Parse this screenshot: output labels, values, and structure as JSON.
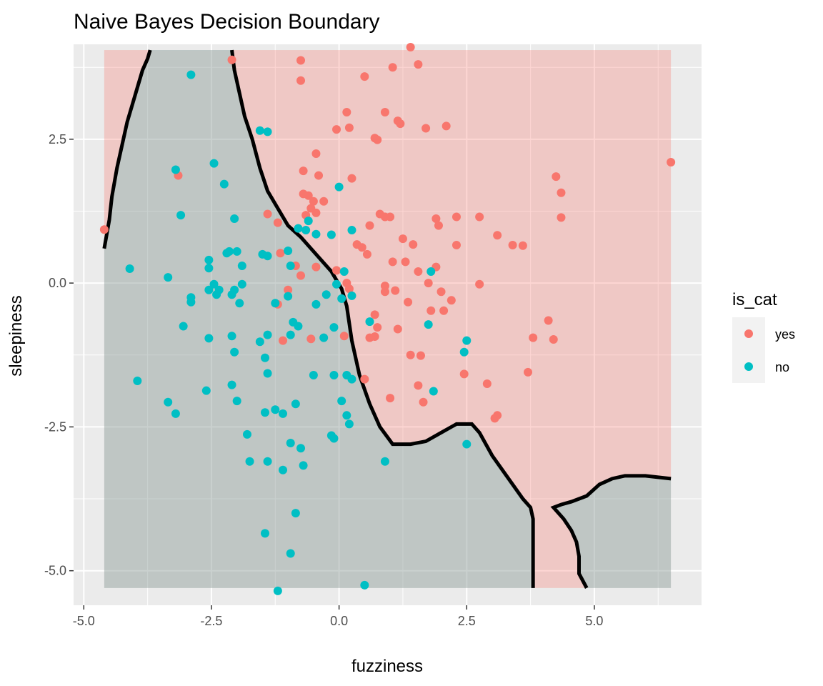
{
  "chart_data": {
    "type": "scatter",
    "title": "Naive Bayes Decision Boundary",
    "xlabel": "fuzziness",
    "ylabel": "sleepiness",
    "xlim": [
      -5.2,
      7.1
    ],
    "ylim": [
      -5.6,
      4.15
    ],
    "x_ticks": [
      -5.0,
      -2.5,
      0.0,
      2.5,
      5.0
    ],
    "x_tick_labels": [
      "-5.0",
      "-2.5",
      "0.0",
      "2.5",
      "5.0"
    ],
    "y_ticks": [
      -5.0,
      -2.5,
      0.0,
      2.5
    ],
    "y_tick_labels": [
      "-5.0",
      "-2.5",
      "0.0",
      "2.5"
    ],
    "grid": true,
    "region_extent": {
      "x": [
        -4.6,
        6.5
      ],
      "y": [
        -5.3,
        4.05
      ]
    },
    "region_colors": {
      "yes": "#F8766D",
      "no": "#00BFC4"
    },
    "no_region_polygons": [
      [
        [
          -4.6,
          4.05
        ],
        [
          -3.7,
          4.05
        ],
        [
          -3.75,
          3.9
        ],
        [
          -3.85,
          3.7
        ],
        [
          -3.95,
          3.4
        ],
        [
          -4.05,
          3.1
        ],
        [
          -4.15,
          2.8
        ],
        [
          -4.25,
          2.4
        ],
        [
          -4.35,
          2.0
        ],
        [
          -4.45,
          1.5
        ],
        [
          -4.5,
          1.1
        ],
        [
          -4.6,
          0.6
        ],
        [
          -4.6,
          -5.3
        ],
        [
          3.8,
          -5.3
        ],
        [
          3.8,
          -4.1
        ],
        [
          3.75,
          -3.9
        ],
        [
          3.6,
          -3.75
        ],
        [
          3.4,
          -3.5
        ],
        [
          3.2,
          -3.25
        ],
        [
          3.0,
          -3.0
        ],
        [
          2.75,
          -2.6
        ],
        [
          2.6,
          -2.45
        ],
        [
          2.3,
          -2.45
        ],
        [
          2.0,
          -2.6
        ],
        [
          1.7,
          -2.75
        ],
        [
          1.4,
          -2.8
        ],
        [
          1.05,
          -2.8
        ],
        [
          0.8,
          -2.5
        ],
        [
          0.6,
          -2.1
        ],
        [
          0.4,
          -1.6
        ],
        [
          0.25,
          -1.0
        ],
        [
          0.15,
          -0.4
        ],
        [
          0.05,
          -0.1
        ],
        [
          -0.15,
          0.2
        ],
        [
          -0.45,
          0.5
        ],
        [
          -0.75,
          0.8
        ],
        [
          -1.0,
          1.0
        ],
        [
          -1.2,
          1.3
        ],
        [
          -1.4,
          1.6
        ],
        [
          -1.55,
          2.0
        ],
        [
          -1.7,
          2.5
        ],
        [
          -1.85,
          2.9
        ],
        [
          -1.95,
          3.3
        ],
        [
          -2.05,
          3.7
        ],
        [
          -2.1,
          4.05
        ]
      ],
      [
        [
          4.2,
          -3.9
        ],
        [
          4.35,
          -3.85
        ],
        [
          4.55,
          -3.8
        ],
        [
          4.85,
          -3.7
        ],
        [
          5.1,
          -3.5
        ],
        [
          5.35,
          -3.4
        ],
        [
          5.6,
          -3.35
        ],
        [
          6.0,
          -3.35
        ],
        [
          6.5,
          -3.4
        ],
        [
          6.5,
          -5.3
        ],
        [
          4.85,
          -5.3
        ],
        [
          4.7,
          -5.05
        ],
        [
          4.7,
          -4.75
        ],
        [
          4.65,
          -4.5
        ],
        [
          4.55,
          -4.3
        ],
        [
          4.4,
          -4.1
        ]
      ]
    ],
    "boundary_paths": [
      [
        [
          -4.6,
          0.6
        ],
        [
          -4.5,
          1.1
        ],
        [
          -4.45,
          1.5
        ],
        [
          -4.35,
          2.0
        ],
        [
          -4.25,
          2.4
        ],
        [
          -4.15,
          2.8
        ],
        [
          -4.05,
          3.1
        ],
        [
          -3.95,
          3.4
        ],
        [
          -3.85,
          3.7
        ],
        [
          -3.75,
          3.9
        ],
        [
          -3.7,
          4.05
        ]
      ],
      [
        [
          -2.1,
          4.05
        ],
        [
          -2.05,
          3.7
        ],
        [
          -1.95,
          3.3
        ],
        [
          -1.85,
          2.9
        ],
        [
          -1.7,
          2.5
        ],
        [
          -1.55,
          2.0
        ],
        [
          -1.4,
          1.6
        ],
        [
          -1.2,
          1.3
        ],
        [
          -1.0,
          1.0
        ],
        [
          -0.75,
          0.8
        ],
        [
          -0.45,
          0.5
        ],
        [
          -0.15,
          0.2
        ],
        [
          0.05,
          -0.1
        ],
        [
          0.15,
          -0.4
        ],
        [
          0.25,
          -1.0
        ],
        [
          0.4,
          -1.6
        ],
        [
          0.6,
          -2.1
        ],
        [
          0.8,
          -2.5
        ],
        [
          1.05,
          -2.8
        ],
        [
          1.4,
          -2.8
        ],
        [
          1.7,
          -2.75
        ],
        [
          2.0,
          -2.6
        ],
        [
          2.3,
          -2.45
        ],
        [
          2.6,
          -2.45
        ],
        [
          2.75,
          -2.6
        ],
        [
          3.0,
          -3.0
        ],
        [
          3.2,
          -3.25
        ],
        [
          3.4,
          -3.5
        ],
        [
          3.6,
          -3.75
        ],
        [
          3.75,
          -3.9
        ],
        [
          3.8,
          -4.1
        ],
        [
          3.8,
          -5.3
        ]
      ],
      [
        [
          4.85,
          -5.3
        ],
        [
          4.7,
          -5.05
        ],
        [
          4.7,
          -4.75
        ],
        [
          4.65,
          -4.5
        ],
        [
          4.55,
          -4.3
        ],
        [
          4.4,
          -4.1
        ],
        [
          4.2,
          -3.9
        ],
        [
          4.35,
          -3.85
        ],
        [
          4.55,
          -3.8
        ],
        [
          4.85,
          -3.7
        ],
        [
          5.1,
          -3.5
        ],
        [
          5.35,
          -3.4
        ],
        [
          5.6,
          -3.35
        ],
        [
          6.0,
          -3.35
        ],
        [
          6.5,
          -3.4
        ]
      ]
    ],
    "legend": {
      "title": "is_cat",
      "placement": "right",
      "entries": [
        {
          "label": "yes",
          "color": "#F8766D"
        },
        {
          "label": "no",
          "color": "#00BFC4"
        }
      ]
    },
    "series": [
      {
        "name": "yes",
        "color": "#F8766D",
        "points": [
          [
            -4.6,
            0.93
          ],
          [
            -2.1,
            3.88
          ],
          [
            -3.15,
            1.87
          ],
          [
            -0.75,
            3.87
          ],
          [
            -0.75,
            3.52
          ],
          [
            1.4,
            4.1
          ],
          [
            1.55,
            3.8
          ],
          [
            0.5,
            3.59
          ],
          [
            1.05,
            3.75
          ],
          [
            0.15,
            2.97
          ],
          [
            0.9,
            2.97
          ],
          [
            1.15,
            2.82
          ],
          [
            1.2,
            2.77
          ],
          [
            -0.05,
            2.67
          ],
          [
            0.2,
            2.7
          ],
          [
            1.7,
            2.69
          ],
          [
            2.1,
            2.73
          ],
          [
            0.7,
            2.52
          ],
          [
            0.75,
            2.49
          ],
          [
            -0.45,
            2.25
          ],
          [
            -0.7,
            1.95
          ],
          [
            -0.4,
            1.87
          ],
          [
            0.25,
            1.82
          ],
          [
            4.25,
            1.85
          ],
          [
            4.35,
            1.57
          ],
          [
            6.5,
            2.1
          ],
          [
            -0.7,
            1.55
          ],
          [
            -0.6,
            1.52
          ],
          [
            -0.5,
            1.42
          ],
          [
            -0.3,
            1.42
          ],
          [
            -0.55,
            1.3
          ],
          [
            -0.45,
            1.22
          ],
          [
            -0.65,
            1.18
          ],
          [
            -1.4,
            1.2
          ],
          [
            -1.2,
            1.05
          ],
          [
            0.8,
            1.2
          ],
          [
            0.9,
            1.15
          ],
          [
            0.6,
            1.0
          ],
          [
            1.0,
            1.15
          ],
          [
            1.9,
            1.12
          ],
          [
            2.3,
            1.15
          ],
          [
            2.75,
            1.15
          ],
          [
            4.35,
            1.14
          ],
          [
            1.95,
            1.0
          ],
          [
            1.25,
            0.77
          ],
          [
            1.45,
            0.67
          ],
          [
            3.1,
            0.83
          ],
          [
            3.4,
            0.66
          ],
          [
            3.6,
            0.65
          ],
          [
            0.35,
            0.67
          ],
          [
            0.45,
            0.62
          ],
          [
            0.55,
            0.5
          ],
          [
            2.3,
            0.66
          ],
          [
            1.05,
            0.37
          ],
          [
            1.3,
            0.37
          ],
          [
            1.9,
            0.28
          ],
          [
            -1.15,
            0.52
          ],
          [
            -0.85,
            0.3
          ],
          [
            -0.75,
            0.13
          ],
          [
            -0.45,
            0.28
          ],
          [
            -0.05,
            0.22
          ],
          [
            0.15,
            0.0
          ],
          [
            0.2,
            -0.1
          ],
          [
            0.9,
            -0.05
          ],
          [
            0.9,
            -0.15
          ],
          [
            1.1,
            -0.13
          ],
          [
            1.55,
            0.2
          ],
          [
            1.75,
            0.0
          ],
          [
            2.0,
            -0.15
          ],
          [
            2.2,
            -0.3
          ],
          [
            2.75,
            -0.02
          ],
          [
            1.35,
            -0.33
          ],
          [
            1.8,
            -0.48
          ],
          [
            2.05,
            -0.48
          ],
          [
            0.7,
            -0.55
          ],
          [
            -1.0,
            -0.12
          ],
          [
            -1.2,
            -0.37
          ],
          [
            0.1,
            -0.92
          ],
          [
            0.6,
            -0.95
          ],
          [
            0.7,
            -0.93
          ],
          [
            0.75,
            -0.77
          ],
          [
            1.15,
            -0.8
          ],
          [
            -0.55,
            -0.97
          ],
          [
            -1.1,
            -1.0
          ],
          [
            1.4,
            -1.25
          ],
          [
            1.6,
            -1.26
          ],
          [
            2.45,
            -1.58
          ],
          [
            3.8,
            -0.95
          ],
          [
            4.1,
            -0.65
          ],
          [
            4.2,
            -0.98
          ],
          [
            3.7,
            -1.55
          ],
          [
            0.5,
            -1.67
          ],
          [
            1.55,
            -1.78
          ],
          [
            1.65,
            -2.07
          ],
          [
            1.0,
            -2.0
          ],
          [
            2.9,
            -1.75
          ],
          [
            3.05,
            -2.35
          ],
          [
            3.1,
            -2.3
          ]
        ]
      },
      {
        "name": "no",
        "color": "#00BFC4",
        "points": [
          [
            -2.9,
            3.62
          ],
          [
            -1.55,
            2.65
          ],
          [
            -1.4,
            2.63
          ],
          [
            -3.2,
            1.97
          ],
          [
            -2.45,
            2.08
          ],
          [
            -2.25,
            1.72
          ],
          [
            -3.1,
            1.18
          ],
          [
            -2.05,
            1.12
          ],
          [
            -2.2,
            0.52
          ],
          [
            -2.15,
            0.55
          ],
          [
            -2.0,
            0.55
          ],
          [
            -2.55,
            0.4
          ],
          [
            -1.9,
            0.3
          ],
          [
            -4.1,
            0.25
          ],
          [
            -3.35,
            0.1
          ],
          [
            -2.55,
            0.26
          ],
          [
            -2.45,
            -0.02
          ],
          [
            -2.55,
            -0.12
          ],
          [
            -2.35,
            -0.12
          ],
          [
            -2.4,
            -0.2
          ],
          [
            -2.1,
            -0.2
          ],
          [
            -2.05,
            -0.12
          ],
          [
            -1.9,
            -0.02
          ],
          [
            -1.95,
            -0.35
          ],
          [
            -2.9,
            -0.25
          ],
          [
            -2.9,
            -0.33
          ],
          [
            -3.05,
            -0.75
          ],
          [
            -2.55,
            -0.96
          ],
          [
            -2.1,
            -0.92
          ],
          [
            -2.05,
            -1.2
          ],
          [
            -1.55,
            -1.02
          ],
          [
            -1.4,
            -0.9
          ],
          [
            -1.45,
            -1.3
          ],
          [
            -1.4,
            -1.57
          ],
          [
            -0.95,
            -0.9
          ],
          [
            -0.8,
            -0.75
          ],
          [
            -0.9,
            -0.68
          ],
          [
            -0.45,
            -0.37
          ],
          [
            -0.25,
            -0.2
          ],
          [
            -0.05,
            -0.02
          ],
          [
            0.1,
            0.2
          ],
          [
            0.05,
            -0.27
          ],
          [
            0.25,
            -0.22
          ],
          [
            -1.5,
            0.5
          ],
          [
            -1.4,
            0.47
          ],
          [
            -1.0,
            0.56
          ],
          [
            -0.95,
            0.3
          ],
          [
            -0.8,
            0.95
          ],
          [
            -0.65,
            0.92
          ],
          [
            -0.6,
            1.08
          ],
          [
            -0.45,
            0.85
          ],
          [
            -0.15,
            0.84
          ],
          [
            0.25,
            0.92
          ],
          [
            0.0,
            1.67
          ],
          [
            -0.3,
            -0.95
          ],
          [
            -0.1,
            -0.77
          ],
          [
            -1.25,
            -0.35
          ],
          [
            -1.0,
            -0.23
          ],
          [
            0.6,
            -0.67
          ],
          [
            1.8,
            0.2
          ],
          [
            1.75,
            -0.72
          ],
          [
            -3.95,
            -1.7
          ],
          [
            -3.35,
            -2.07
          ],
          [
            -3.2,
            -2.27
          ],
          [
            -2.6,
            -1.87
          ],
          [
            -2.1,
            -1.77
          ],
          [
            -2.0,
            -2.05
          ],
          [
            -1.8,
            -2.63
          ],
          [
            -1.75,
            -3.1
          ],
          [
            -1.45,
            -2.25
          ],
          [
            -1.25,
            -2.2
          ],
          [
            -1.1,
            -2.27
          ],
          [
            -0.85,
            -2.1
          ],
          [
            -0.95,
            -2.78
          ],
          [
            -0.75,
            -2.87
          ],
          [
            -0.7,
            -3.17
          ],
          [
            -1.4,
            -3.1
          ],
          [
            -1.1,
            -3.25
          ],
          [
            -0.85,
            -4.0
          ],
          [
            -1.45,
            -4.35
          ],
          [
            -0.95,
            -4.7
          ],
          [
            -1.2,
            -5.35
          ],
          [
            -0.5,
            -1.6
          ],
          [
            -0.1,
            -1.6
          ],
          [
            0.15,
            -1.6
          ],
          [
            0.25,
            -1.67
          ],
          [
            0.05,
            -2.05
          ],
          [
            0.15,
            -2.3
          ],
          [
            0.2,
            -2.45
          ],
          [
            -0.15,
            -2.65
          ],
          [
            -0.1,
            -2.7
          ],
          [
            0.9,
            -3.1
          ],
          [
            2.5,
            -1.0
          ],
          [
            2.45,
            -1.2
          ],
          [
            1.85,
            -1.88
          ],
          [
            2.5,
            -2.8
          ],
          [
            0.5,
            -5.25
          ]
        ]
      }
    ]
  }
}
